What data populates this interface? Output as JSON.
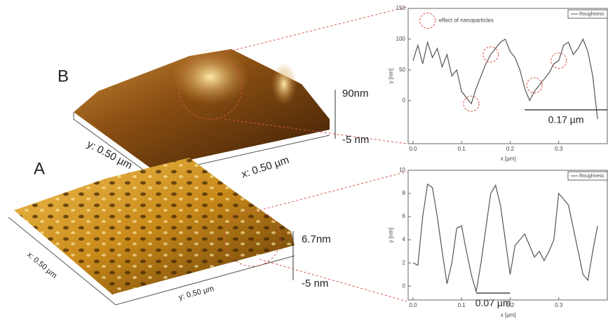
{
  "figure": {
    "labels": [
      "B",
      "A"
    ],
    "top_scale": [
      "90nm",
      "-5 nm"
    ],
    "bottom_scale": [
      "6.7nm",
      "-5 nm"
    ],
    "top_axes": [
      "y: 0.50 µm",
      "x: 0.50 µm"
    ],
    "bottom_axes": [
      "x: 0.50 µm",
      "y: 0.50 µm"
    ]
  },
  "chart_data": [
    {
      "type": "line",
      "xlabel": "x [µm]",
      "ylabel": "y [nm]",
      "annotation": "effect of nanoparticles",
      "scale_label": "0.17 µm",
      "xlim": [
        -0.01,
        0.4
      ],
      "ylim": [
        -70,
        150
      ],
      "xticks": [
        {
          "value": 0,
          "label": "0.0"
        },
        0.1,
        0.2,
        0.3
      ],
      "yticks": [
        0,
        50,
        100,
        150
      ],
      "x": [
        0,
        0.01,
        0.02,
        0.03,
        0.04,
        0.05,
        0.06,
        0.07,
        0.08,
        0.09,
        0.1,
        0.11,
        0.12,
        0.13,
        0.14,
        0.15,
        0.16,
        0.17,
        0.18,
        0.19,
        0.2,
        0.21,
        0.22,
        0.23,
        0.24,
        0.25,
        0.26,
        0.27,
        0.28,
        0.29,
        0.3,
        0.31,
        0.32,
        0.33,
        0.34,
        0.35,
        0.36,
        0.37,
        0.38
      ],
      "series": [
        {
          "name": "Roughness",
          "color": "#555555",
          "values": [
            65,
            90,
            60,
            95,
            70,
            85,
            55,
            75,
            40,
            50,
            15,
            5,
            -5,
            20,
            40,
            60,
            75,
            85,
            95,
            100,
            80,
            70,
            50,
            20,
            0,
            15,
            25,
            35,
            45,
            60,
            65,
            90,
            95,
            75,
            85,
            100,
            80,
            40,
            -30
          ]
        }
      ]
    },
    {
      "type": "line",
      "xlabel": "x [µm]",
      "ylabel": "y [nm]",
      "scale_label": "0.07 µm",
      "xlim": [
        -0.01,
        0.4
      ],
      "ylim": [
        -1.2,
        10
      ],
      "xticks": [
        {
          "value": 0,
          "label": "0.0"
        },
        0.1,
        0.2,
        0.3
      ],
      "yticks": [
        0,
        2,
        4,
        6,
        8,
        10
      ],
      "x": [
        0,
        0.01,
        0.02,
        0.03,
        0.04,
        0.05,
        0.06,
        0.07,
        0.08,
        0.09,
        0.1,
        0.11,
        0.12,
        0.13,
        0.14,
        0.15,
        0.16,
        0.17,
        0.18,
        0.19,
        0.2,
        0.21,
        0.22,
        0.23,
        0.24,
        0.25,
        0.26,
        0.27,
        0.28,
        0.29,
        0.3,
        0.31,
        0.32,
        0.33,
        0.34,
        0.35,
        0.36,
        0.37,
        0.38
      ],
      "series": [
        {
          "name": "Roughness",
          "color": "#555555",
          "values": [
            2,
            1.8,
            6,
            8.8,
            8.5,
            6,
            3,
            0.2,
            2,
            5,
            5.2,
            3,
            1,
            -0.5,
            2,
            5,
            8,
            8.7,
            7,
            4,
            1,
            3.5,
            4,
            4.5,
            3.5,
            2.5,
            3,
            2.2,
            3,
            4,
            8,
            7.5,
            7,
            5,
            3,
            1,
            0.5,
            3,
            5.2
          ]
        }
      ]
    }
  ]
}
